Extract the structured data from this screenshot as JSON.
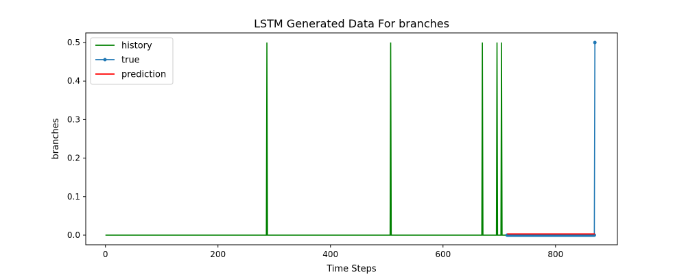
{
  "chart_data": {
    "type": "line",
    "title": "LSTM Generated Data For branches",
    "xlabel": "Time Steps",
    "ylabel": "branches",
    "xlim": [
      -35,
      910
    ],
    "ylim": [
      -0.025,
      0.525
    ],
    "x_ticks": [
      0,
      200,
      400,
      600,
      800
    ],
    "y_ticks": [
      0.0,
      0.1,
      0.2,
      0.3,
      0.4,
      0.5
    ],
    "y_tick_labels": [
      "0.0",
      "0.1",
      "0.2",
      "0.3",
      "0.4",
      "0.5"
    ],
    "grid": false,
    "legend_position": "upper left",
    "series": [
      {
        "name": "history",
        "color": "#008000",
        "marker": false,
        "x": [
          0,
          286,
          287,
          288,
          506,
          507,
          508,
          669,
          670,
          671,
          695,
          696,
          697,
          703,
          704,
          705,
          713
        ],
        "y": [
          0,
          0,
          0.5,
          0,
          0,
          0.5,
          0,
          0,
          0.5,
          0,
          0,
          0.5,
          0,
          0,
          0.5,
          0,
          0
        ]
      },
      {
        "name": "true",
        "color": "#1f77b4",
        "marker": true,
        "x_start": 714,
        "x_end": 870,
        "values_note_baseline": 0,
        "final_x": 870,
        "final_y": 0.5
      },
      {
        "name": "prediction",
        "color": "#ff0000",
        "marker": false,
        "x": [
          714,
          870
        ],
        "y": [
          0.003,
          0.003
        ]
      }
    ]
  }
}
